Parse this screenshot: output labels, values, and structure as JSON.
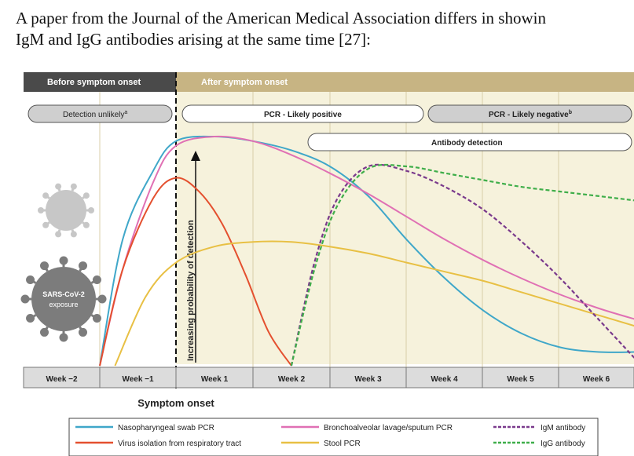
{
  "caption": {
    "line1": "A paper from the Journal of the American Medical Association differs in showin",
    "line2": "IgM and IgG antibodies arising at the same time [27]:"
  },
  "figure": {
    "phases": {
      "before": "Before symptom onset",
      "after": "After symptom onset"
    },
    "pills": {
      "detection_unlikely": "Detection unlikely",
      "detection_unlikely_sup": "a",
      "pcr_likely_positive": "PCR - Likely positive",
      "pcr_likely_negative": "PCR - Likely negative",
      "pcr_likely_negative_sup": "b",
      "antibody_detection": "Antibody detection"
    },
    "virus_label_line1": "SARS-CoV-2",
    "virus_label_line2": "exposure",
    "y_axis_label": "Increasing probability of detection",
    "symptom_onset_label": "Symptom onset",
    "legend": [
      {
        "label": "Nasopharyngeal swab PCR",
        "color": "#3fa7c9",
        "dash": false
      },
      {
        "label": "Bronchoalveolar lavage/sputum PCR",
        "color": "#e070b4",
        "dash": false
      },
      {
        "label": "IgM antibody",
        "color": "#7a3a8c",
        "dash": true
      },
      {
        "label": "Virus isolation from respiratory tract",
        "color": "#e4502f",
        "dash": false
      },
      {
        "label": "Stool PCR",
        "color": "#e8c044",
        "dash": false
      },
      {
        "label": "IgG antibody",
        "color": "#3fae4a",
        "dash": true
      }
    ]
  },
  "chart_data": {
    "type": "line",
    "categories": [
      "Week −2",
      "Week −1",
      "Week 1",
      "Week 2",
      "Week 3",
      "Week 4",
      "Week 5",
      "Week 6"
    ],
    "ylabel": "Increasing probability of detection",
    "series": [
      {
        "name": "Nasopharyngeal swab PCR",
        "color": "#3fa7c9",
        "dash": false,
        "x": [
          -1.0,
          -0.7,
          -0.3,
          0.0,
          0.5,
          1.0,
          1.5,
          2.0,
          2.5,
          3.0,
          3.5,
          4.0,
          4.5,
          5.0,
          5.5,
          6.0
        ],
        "y": [
          0.0,
          0.55,
          0.85,
          0.98,
          1.0,
          0.98,
          0.94,
          0.87,
          0.74,
          0.55,
          0.38,
          0.24,
          0.14,
          0.08,
          0.06,
          0.06
        ]
      },
      {
        "name": "Bronchoalveolar lavage/sputum PCR",
        "color": "#e070b4",
        "dash": false,
        "x": [
          -1.0,
          -0.7,
          -0.3,
          0.0,
          0.5,
          1.0,
          1.5,
          2.0,
          2.5,
          3.0,
          3.5,
          4.0,
          4.5,
          5.0,
          5.5,
          6.0
        ],
        "y": [
          0.0,
          0.42,
          0.8,
          0.96,
          1.0,
          0.98,
          0.92,
          0.84,
          0.75,
          0.65,
          0.55,
          0.46,
          0.38,
          0.31,
          0.25,
          0.2
        ]
      },
      {
        "name": "Virus isolation from respiratory tract",
        "color": "#e4502f",
        "dash": false,
        "x": [
          -1.0,
          -0.7,
          -0.3,
          0.0,
          0.3,
          0.6,
          0.9,
          1.2,
          1.5
        ],
        "y": [
          0.0,
          0.42,
          0.73,
          0.82,
          0.76,
          0.62,
          0.4,
          0.15,
          0.0
        ]
      },
      {
        "name": "Stool PCR",
        "color": "#e8c044",
        "dash": false,
        "x": [
          -0.8,
          -0.4,
          0.0,
          0.5,
          1.0,
          1.5,
          2.0,
          2.5,
          3.0,
          3.5,
          4.0,
          4.5,
          5.0,
          5.5,
          6.0
        ],
        "y": [
          0.0,
          0.3,
          0.45,
          0.52,
          0.54,
          0.54,
          0.52,
          0.49,
          0.45,
          0.41,
          0.37,
          0.32,
          0.27,
          0.22,
          0.17
        ]
      },
      {
        "name": "IgM antibody",
        "color": "#7a3a8c",
        "dash": true,
        "x": [
          1.5,
          1.8,
          2.1,
          2.5,
          3.0,
          3.5,
          4.0,
          4.5,
          5.0,
          5.5,
          6.0
        ],
        "y": [
          0.0,
          0.45,
          0.73,
          0.87,
          0.85,
          0.78,
          0.68,
          0.54,
          0.38,
          0.2,
          0.02
        ]
      },
      {
        "name": "IgG antibody",
        "color": "#3fae4a",
        "dash": true,
        "x": [
          1.5,
          1.8,
          2.1,
          2.5,
          3.0,
          3.5,
          4.0,
          4.5,
          5.0,
          5.5,
          6.0
        ],
        "y": [
          0.0,
          0.42,
          0.7,
          0.86,
          0.87,
          0.84,
          0.81,
          0.78,
          0.76,
          0.74,
          0.72
        ]
      }
    ]
  }
}
